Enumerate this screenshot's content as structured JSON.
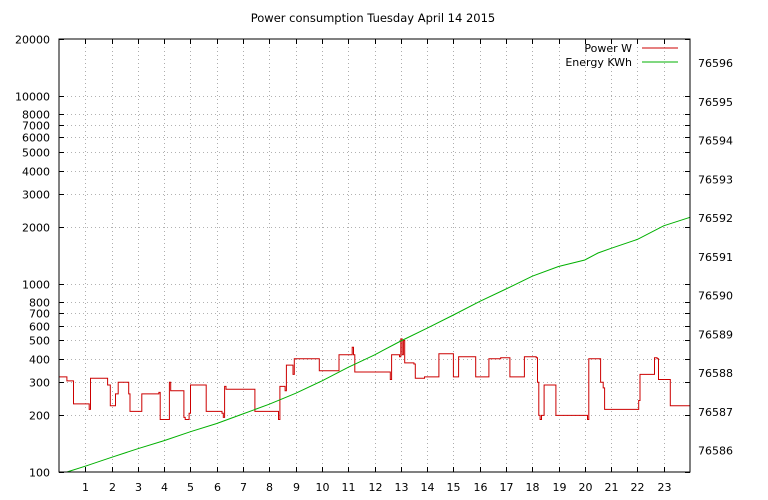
{
  "chart_data": {
    "type": "line",
    "title": "Power consumption Tuesday April 14 2015",
    "xlabel": "",
    "ylabel": "",
    "y2label": "",
    "x_range": [
      0,
      24
    ],
    "x_ticks": [
      1,
      2,
      3,
      4,
      5,
      6,
      7,
      8,
      9,
      10,
      11,
      12,
      13,
      14,
      15,
      16,
      17,
      18,
      19,
      20,
      21,
      22,
      23
    ],
    "y_scale": "log",
    "y_range": [
      100,
      20000
    ],
    "y_ticks": [
      100,
      200,
      300,
      400,
      500,
      600,
      700,
      800,
      1000,
      2000,
      3000,
      4000,
      5000,
      6000,
      7000,
      8000,
      10000,
      20000
    ],
    "y2_range": [
      76585.45,
      76596.62
    ],
    "y2_ticks": [
      76586,
      76587,
      76588,
      76589,
      76590,
      76591,
      76592,
      76593,
      76594,
      76595,
      76596
    ],
    "grid": true,
    "grid_style": "dotted",
    "legend_position": "top-right",
    "series": [
      {
        "name": "Power W",
        "axis": "left",
        "color": "#cc0000",
        "step": true,
        "points": [
          [
            0.0,
            320
          ],
          [
            0.3,
            305
          ],
          [
            0.55,
            230
          ],
          [
            1.15,
            215
          ],
          [
            1.2,
            315
          ],
          [
            1.85,
            290
          ],
          [
            1.95,
            225
          ],
          [
            2.15,
            260
          ],
          [
            2.25,
            300
          ],
          [
            2.65,
            260
          ],
          [
            2.7,
            210
          ],
          [
            3.1,
            210
          ],
          [
            3.15,
            260
          ],
          [
            3.8,
            265
          ],
          [
            3.85,
            190
          ],
          [
            4.15,
            190
          ],
          [
            4.2,
            300
          ],
          [
            4.25,
            270
          ],
          [
            4.75,
            195
          ],
          [
            4.8,
            190
          ],
          [
            4.95,
            205
          ],
          [
            5.0,
            290
          ],
          [
            5.55,
            290
          ],
          [
            5.6,
            210
          ],
          [
            6.2,
            205
          ],
          [
            6.25,
            195
          ],
          [
            6.3,
            285
          ],
          [
            6.35,
            275
          ],
          [
            7.4,
            275
          ],
          [
            7.45,
            210
          ],
          [
            8.3,
            210
          ],
          [
            8.35,
            190
          ],
          [
            8.4,
            285
          ],
          [
            8.6,
            270
          ],
          [
            8.65,
            370
          ],
          [
            8.9,
            330
          ],
          [
            8.95,
            400
          ],
          [
            9.85,
            400
          ],
          [
            9.9,
            345
          ],
          [
            10.6,
            345
          ],
          [
            10.65,
            420
          ],
          [
            11.15,
            460
          ],
          [
            11.2,
            420
          ],
          [
            11.25,
            340
          ],
          [
            12.55,
            340
          ],
          [
            12.6,
            310
          ],
          [
            12.65,
            420
          ],
          [
            12.95,
            410
          ],
          [
            13.0,
            510
          ],
          [
            13.05,
            420
          ],
          [
            13.1,
            500
          ],
          [
            13.15,
            380
          ],
          [
            13.3,
            380
          ],
          [
            13.5,
            375
          ],
          [
            13.55,
            315
          ],
          [
            13.9,
            320
          ],
          [
            14.4,
            320
          ],
          [
            14.45,
            425
          ],
          [
            14.95,
            425
          ],
          [
            15.0,
            320
          ],
          [
            15.1,
            320
          ],
          [
            15.2,
            410
          ],
          [
            15.8,
            410
          ],
          [
            15.85,
            320
          ],
          [
            16.3,
            320
          ],
          [
            16.35,
            400
          ],
          [
            16.8,
            405
          ],
          [
            17.1,
            405
          ],
          [
            17.15,
            320
          ],
          [
            17.65,
            320
          ],
          [
            17.7,
            410
          ],
          [
            18.15,
            405
          ],
          [
            18.2,
            300
          ],
          [
            18.25,
            200
          ],
          [
            18.3,
            190
          ],
          [
            18.35,
            200
          ],
          [
            18.45,
            290
          ],
          [
            18.85,
            290
          ],
          [
            18.9,
            200
          ],
          [
            20.05,
            200
          ],
          [
            20.1,
            190
          ],
          [
            20.15,
            400
          ],
          [
            20.55,
            400
          ],
          [
            20.6,
            300
          ],
          [
            20.7,
            280
          ],
          [
            20.75,
            215
          ],
          [
            22.0,
            215
          ],
          [
            22.05,
            240
          ],
          [
            22.1,
            330
          ],
          [
            22.6,
            330
          ],
          [
            22.65,
            405
          ],
          [
            22.75,
            400
          ],
          [
            22.8,
            310
          ],
          [
            23.2,
            310
          ],
          [
            23.25,
            225
          ],
          [
            23.95,
            225
          ],
          [
            24.0,
            300
          ]
        ]
      },
      {
        "name": "Energy KWh",
        "axis": "right",
        "color": "#00b000",
        "step": false,
        "points": [
          [
            0.3,
            76585.45
          ],
          [
            1.0,
            76585.6
          ],
          [
            2.0,
            76585.83
          ],
          [
            3.0,
            76586.05
          ],
          [
            4.0,
            76586.26
          ],
          [
            5.0,
            76586.49
          ],
          [
            6.0,
            76586.7
          ],
          [
            7.0,
            76586.95
          ],
          [
            8.0,
            76587.2
          ],
          [
            9.0,
            76587.48
          ],
          [
            10.0,
            76587.8
          ],
          [
            11.0,
            76588.15
          ],
          [
            12.0,
            76588.47
          ],
          [
            13.0,
            76588.83
          ],
          [
            14.0,
            76589.16
          ],
          [
            15.0,
            76589.5
          ],
          [
            16.0,
            76589.85
          ],
          [
            17.0,
            76590.17
          ],
          [
            18.0,
            76590.5
          ],
          [
            19.0,
            76590.75
          ],
          [
            20.0,
            76590.92
          ],
          [
            20.5,
            76591.1
          ],
          [
            21.0,
            76591.22
          ],
          [
            22.0,
            76591.45
          ],
          [
            23.0,
            76591.8
          ],
          [
            24.0,
            76592.02
          ]
        ]
      }
    ]
  }
}
